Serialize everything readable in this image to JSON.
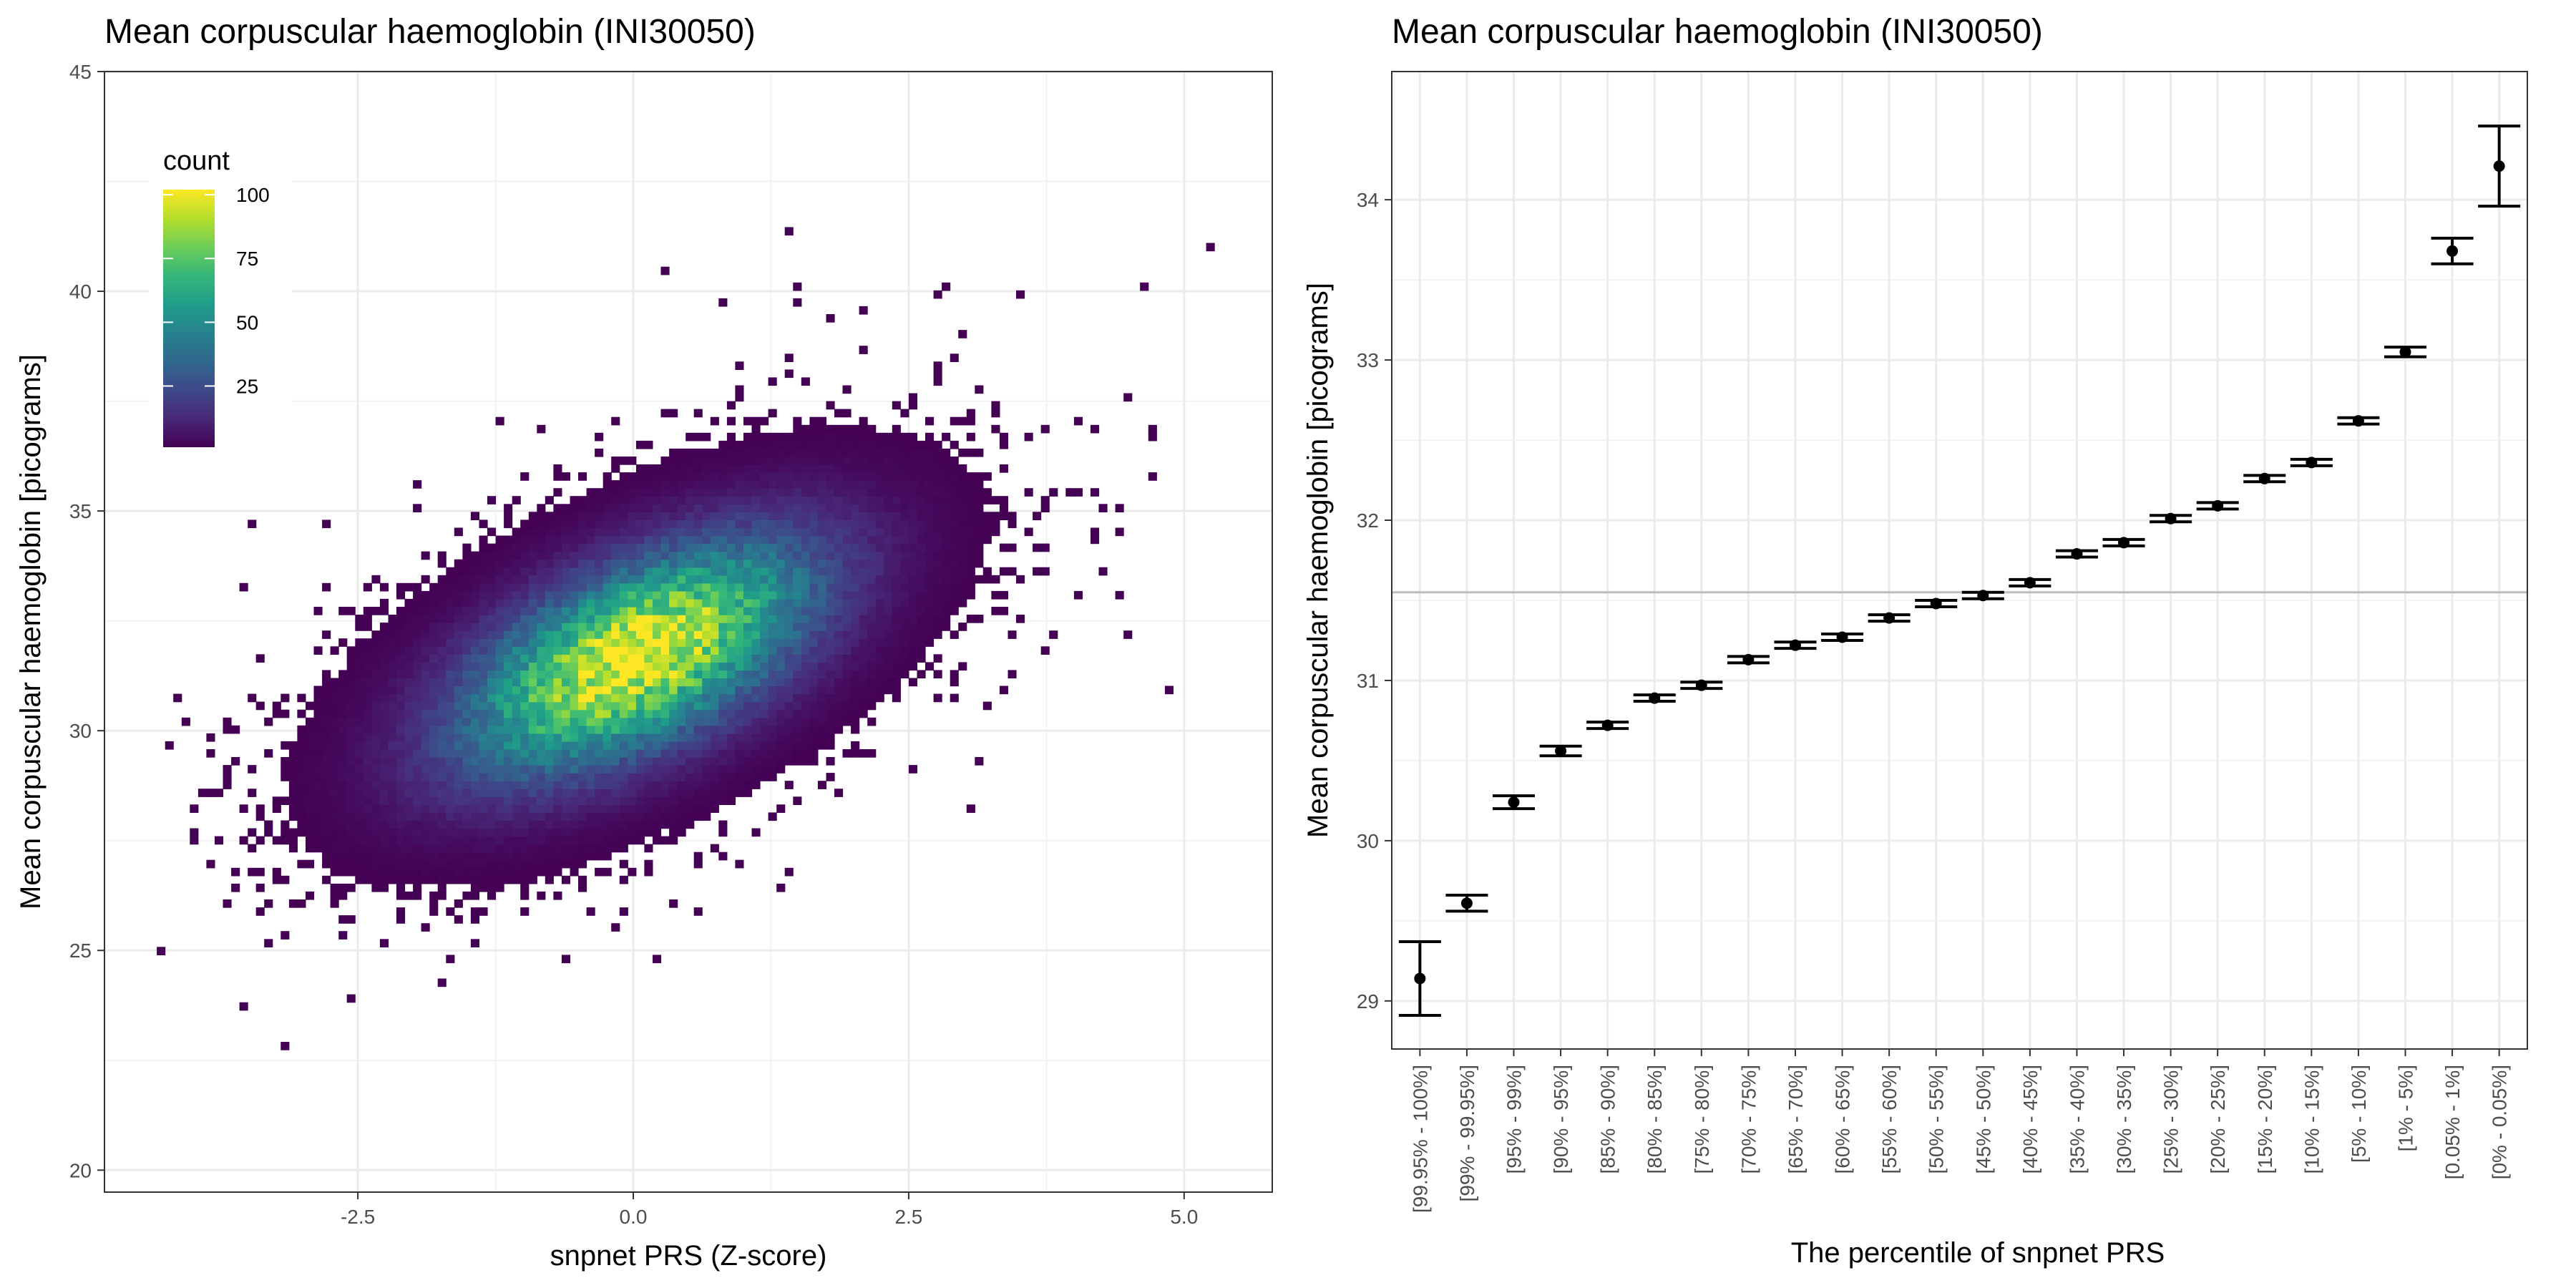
{
  "chart_data": [
    {
      "type": "heatmap",
      "title": "Mean corpuscular haemoglobin (INI30050)",
      "xlabel": "snpnet PRS (Z-score)",
      "ylabel": "Mean corpuscular haemoglobin [picograms]",
      "xlim": [
        -4.8,
        5.8
      ],
      "ylim": [
        19.5,
        45.0
      ],
      "xticks": [
        -2.5,
        0.0,
        2.5,
        5.0
      ],
      "xtick_labels": [
        "-2.5",
        "0.0",
        "2.5",
        "5.0"
      ],
      "yticks": [
        20,
        25,
        30,
        35,
        40,
        45
      ],
      "ytick_labels": [
        "20",
        "25",
        "30",
        "35",
        "40",
        "45"
      ],
      "grid": true,
      "legend": {
        "title": "count",
        "placement": "top-left inside",
        "range": [
          1,
          102
        ],
        "ticks": [
          25,
          50,
          75,
          100
        ],
        "tick_labels": [
          "25",
          "50",
          "75",
          "100"
        ],
        "colormap": [
          "#440154",
          "#482878",
          "#3e4989",
          "#31688e",
          "#26828e",
          "#1f9e89",
          "#35b779",
          "#6ece58",
          "#b5de2b",
          "#fde725"
        ]
      },
      "density_model": {
        "center": [
          0.0,
          31.6
        ],
        "slope": 0.95,
        "sd_x": 1.05,
        "sd_y_residual": 1.4,
        "peak_count": 102
      }
    },
    {
      "type": "scatter",
      "title": "Mean corpuscular haemoglobin (INI30050)",
      "xlabel": "The percentile of snpnet PRS",
      "ylabel": "Mean corpuscular haemoglobin [picograms]",
      "ylim": [
        28.7,
        34.8
      ],
      "yticks": [
        29,
        30,
        31,
        32,
        33,
        34
      ],
      "ytick_labels": [
        "29",
        "30",
        "31",
        "32",
        "33",
        "34"
      ],
      "grid": true,
      "reference_line": 31.55,
      "categories": [
        "[99.95% - 100%]",
        "[99% - 99.95%]",
        "[95% - 99%]",
        "[90% - 95%]",
        "[85% - 90%]",
        "[80% - 85%]",
        "[75% - 80%]",
        "[70% - 75%]",
        "[65% - 70%]",
        "[60% - 65%]",
        "[55% - 60%]",
        "[50% - 55%]",
        "[45% - 50%]",
        "[40% - 45%]",
        "[35% - 40%]",
        "[30% - 35%]",
        "[25% - 30%]",
        "[20% - 25%]",
        "[15% - 20%]",
        "[10% - 15%]",
        "[5% - 10%]",
        "[1% - 5%]",
        "[0.05% - 1%]",
        "[0% - 0.05%]"
      ],
      "values": [
        29.14,
        29.61,
        30.24,
        30.56,
        30.72,
        30.89,
        30.97,
        31.13,
        31.22,
        31.27,
        31.39,
        31.48,
        31.53,
        31.61,
        31.79,
        31.86,
        32.01,
        32.09,
        32.26,
        32.36,
        32.62,
        33.05,
        33.68,
        34.21
      ],
      "lower": [
        28.91,
        29.56,
        30.2,
        30.53,
        30.7,
        30.87,
        30.95,
        31.11,
        31.2,
        31.25,
        31.37,
        31.46,
        31.51,
        31.59,
        31.77,
        31.84,
        31.99,
        32.07,
        32.24,
        32.34,
        32.6,
        33.02,
        33.6,
        33.96
      ],
      "upper": [
        29.37,
        29.66,
        30.28,
        30.59,
        30.74,
        30.91,
        30.99,
        31.15,
        31.24,
        31.29,
        31.41,
        31.5,
        31.55,
        31.63,
        31.81,
        31.88,
        32.03,
        32.11,
        32.28,
        32.38,
        32.64,
        33.08,
        33.76,
        34.46
      ]
    }
  ]
}
